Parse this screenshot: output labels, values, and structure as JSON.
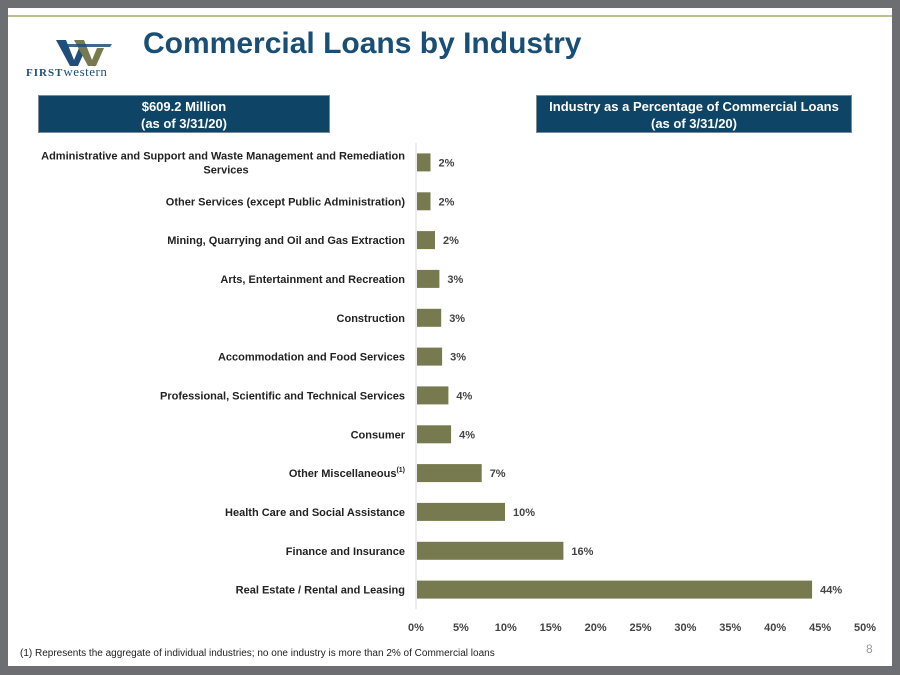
{
  "title": "Commercial Loans by Industry",
  "logo": {
    "first": "FIRST",
    "western": "western"
  },
  "box_left": {
    "line1": "$609.2 Million",
    "line2": "(as of 3/31/20)"
  },
  "box_right": {
    "line1": "Industry as a Percentage of Commercial Loans",
    "line2": "(as of 3/31/20)"
  },
  "footnote": "(1)    Represents the aggregate of  individual industries; no one industry is more than 2% of Commercial loans",
  "page_number": "8",
  "colors": {
    "bar": "#77794f",
    "title": "#1a4f75",
    "box": "#0e4566"
  },
  "chart_data": {
    "type": "bar",
    "orientation": "horizontal",
    "categories": [
      [
        "Administrative and Support and Waste Management and Remediation",
        "Services"
      ],
      [
        "Other Services (except Public Administration)"
      ],
      [
        "Mining, Quarrying and Oil and Gas Extraction"
      ],
      [
        "Arts, Entertainment and Recreation"
      ],
      [
        "Construction"
      ],
      [
        "Accommodation and Food Services"
      ],
      [
        "Professional, Scientific and Technical Services"
      ],
      [
        "Consumer"
      ],
      [
        "Other Miscellaneous"
      ],
      [
        "Health Care and Social Assistance"
      ],
      [
        "Finance and Insurance"
      ],
      [
        "Real Estate / Rental and Leasing"
      ]
    ],
    "category_superscripts": [
      "",
      "",
      "",
      "",
      "",
      "",
      "",
      "",
      "(1)",
      "",
      "",
      ""
    ],
    "values": [
      1.5,
      1.5,
      2.0,
      2.5,
      2.7,
      2.8,
      3.5,
      3.8,
      7.2,
      9.8,
      16.3,
      44.0
    ],
    "data_labels": [
      "2%",
      "2%",
      "2%",
      "3%",
      "3%",
      "3%",
      "4%",
      "4%",
      "7%",
      "10%",
      "16%",
      "44%"
    ],
    "xlim": [
      0,
      50
    ],
    "x_ticks": [
      0,
      5,
      10,
      15,
      20,
      25,
      30,
      35,
      40,
      45,
      50
    ],
    "x_tick_labels": [
      "0%",
      "5%",
      "10%",
      "15%",
      "20%",
      "25%",
      "30%",
      "35%",
      "40%",
      "45%",
      "50%"
    ],
    "grid": false,
    "legend": "none"
  }
}
